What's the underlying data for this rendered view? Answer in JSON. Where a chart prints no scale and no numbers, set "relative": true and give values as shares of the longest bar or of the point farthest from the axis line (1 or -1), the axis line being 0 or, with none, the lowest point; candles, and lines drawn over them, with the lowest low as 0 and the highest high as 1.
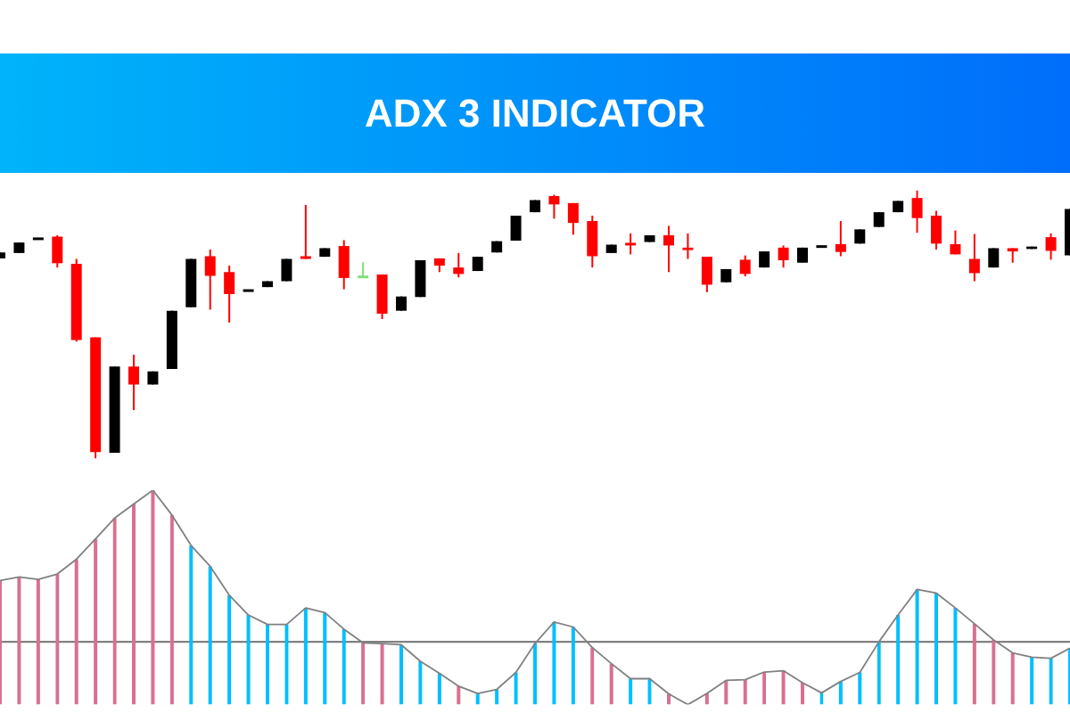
{
  "chart_data": [
    {
      "type": "candlestick",
      "title": "ADX 3 INDICATOR",
      "relative": true,
      "categories": [
        null,
        null,
        null,
        null,
        null,
        null,
        null,
        null,
        null,
        null,
        null,
        null,
        null,
        null,
        null,
        null,
        null,
        null,
        null,
        null,
        null,
        null,
        null,
        null,
        null,
        null,
        null,
        null,
        null,
        null,
        null,
        null,
        null,
        null,
        null,
        null,
        null,
        null,
        null,
        null,
        null,
        null,
        null,
        null,
        null,
        null,
        null,
        null,
        null,
        null,
        null,
        null,
        null,
        null,
        null,
        null,
        null
      ],
      "ohlc": [
        [
          0.746,
          0.768,
          0.746,
          0.768
        ],
        [
          0.766,
          0.805,
          0.766,
          0.805
        ],
        [
          0.819,
          0.819,
          0.819,
          0.819
        ],
        [
          0.827,
          0.832,
          0.712,
          0.728
        ],
        [
          0.726,
          0.744,
          0.436,
          0.442
        ],
        [
          0.452,
          0.452,
          0,
          0.024
        ],
        [
          0.022,
          0.343,
          0.022,
          0.343
        ],
        [
          0.343,
          0.387,
          0.181,
          0.276
        ],
        [
          0.276,
          0.325,
          0.276,
          0.325
        ],
        [
          0.334,
          0.551,
          0.334,
          0.551
        ],
        [
          0.564,
          0.744,
          0.564,
          0.744
        ],
        [
          0.754,
          0.779,
          0.555,
          0.681
        ],
        [
          0.695,
          0.719,
          0.507,
          0.613
        ],
        [
          0.626,
          0.626,
          0.626,
          0.626
        ],
        [
          0.639,
          0.661,
          0.639,
          0.661
        ],
        [
          0.661,
          0.744,
          0.661,
          0.744
        ],
        [
          0.754,
          0.945,
          0.744,
          0.744
        ],
        [
          0.752,
          0.784,
          0.752,
          0.784
        ],
        [
          0.792,
          0.814,
          0.631,
          0.673
        ],
        [
          0.677,
          0.732,
          0.677,
          0.677
        ],
        [
          0.686,
          0.686,
          0.52,
          0.54
        ],
        [
          0.551,
          0.604,
          0.551,
          0.604
        ],
        [
          0.602,
          0.739,
          0.602,
          0.739
        ],
        [
          0.746,
          0.746,
          0.695,
          0.719
        ],
        [
          0.712,
          0.766,
          0.675,
          0.688
        ],
        [
          0.699,
          0.752,
          0.699,
          0.752
        ],
        [
          0.768,
          0.81,
          0.768,
          0.81
        ],
        [
          0.812,
          0.905,
          0.812,
          0.905
        ],
        [
          0.918,
          0.963,
          0.918,
          0.963
        ],
        [
          0.978,
          0.983,
          0.894,
          0.947
        ],
        [
          0.952,
          0.952,
          0.834,
          0.878
        ],
        [
          0.885,
          0.905,
          0.712,
          0.754
        ],
        [
          0.766,
          0.797,
          0.766,
          0.797
        ],
        [
          0.805,
          0.839,
          0.761,
          0.799
        ],
        [
          0.807,
          0.832,
          0.807,
          0.832
        ],
        [
          0.832,
          0.867,
          0.695,
          0.794
        ],
        [
          0.786,
          0.839,
          0.744,
          0.777
        ],
        [
          0.752,
          0.752,
          0.62,
          0.648
        ],
        [
          0.657,
          0.706,
          0.657,
          0.706
        ],
        [
          0.741,
          0.757,
          0.679,
          0.688
        ],
        [
          0.712,
          0.772,
          0.712,
          0.772
        ],
        [
          0.786,
          0.794,
          0.712,
          0.739
        ],
        [
          0.73,
          0.786,
          0.73,
          0.786
        ],
        [
          0.79,
          0.79,
          0.79,
          0.79
        ],
        [
          0.799,
          0.885,
          0.754,
          0.77
        ],
        [
          0.801,
          0.854,
          0.801,
          0.854
        ],
        [
          0.863,
          0.918,
          0.863,
          0.918
        ],
        [
          0.918,
          0.96,
          0.918,
          0.96
        ],
        [
          0.971,
          1,
          0.841,
          0.896
        ],
        [
          0.905,
          0.923,
          0.779,
          0.801
        ],
        [
          0.799,
          0.85,
          0.761,
          0.761
        ],
        [
          0.744,
          0.837,
          0.661,
          0.691
        ],
        [
          0.712,
          0.784,
          0.712,
          0.784
        ],
        [
          0.784,
          0.784,
          0.73,
          0.772
        ],
        [
          0.781,
          0.79,
          0.781,
          0.79
        ],
        [
          0.825,
          0.839,
          0.741,
          0.774
        ],
        [
          0.757,
          0.93,
          0.757,
          0.93
        ]
      ],
      "colors": [
        "#000000",
        "#000000",
        "#000000",
        "#ff0000",
        "#ff0000",
        "#ff0000",
        "#000000",
        "#ff0000",
        "#000000",
        "#000000",
        "#000000",
        "#ff0000",
        "#ff0000",
        "#000000",
        "#000000",
        "#000000",
        "#ff0000",
        "#000000",
        "#ff0000",
        "#7ee07e",
        "#ff0000",
        "#000000",
        "#000000",
        "#ff0000",
        "#ff0000",
        "#000000",
        "#000000",
        "#000000",
        "#000000",
        "#ff0000",
        "#ff0000",
        "#ff0000",
        "#000000",
        "#ff0000",
        "#000000",
        "#ff0000",
        "#ff0000",
        "#ff0000",
        "#000000",
        "#ff0000",
        "#000000",
        "#ff0000",
        "#000000",
        "#000000",
        "#ff0000",
        "#000000",
        "#000000",
        "#000000",
        "#ff0000",
        "#ff0000",
        "#ff0000",
        "#ff0000",
        "#000000",
        "#ff0000",
        "#000000",
        "#ff0000",
        "#000000"
      ]
    },
    {
      "type": "bar",
      "relative": true,
      "categories": [
        null,
        null,
        null,
        null,
        null,
        null,
        null,
        null,
        null,
        null,
        null,
        null,
        null,
        null,
        null,
        null,
        null,
        null,
        null,
        null,
        null,
        null,
        null,
        null,
        null,
        null,
        null,
        null,
        null,
        null,
        null,
        null,
        null,
        null,
        null,
        null,
        null,
        null,
        null,
        null,
        null,
        null,
        null,
        null,
        null,
        null,
        null,
        null,
        null,
        null,
        null,
        null,
        null,
        null,
        null,
        null,
        null
      ],
      "series": [
        {
          "type": "bar",
          "values": [
            0.579,
            0.595,
            0.584,
            0.609,
            0.678,
            0.773,
            0.87,
            0.936,
            1,
            0.884,
            0.742,
            0.645,
            0.51,
            0.418,
            0.374,
            0.374,
            0.451,
            0.429,
            0.352,
            0.288,
            0.285,
            0.279,
            0.202,
            0.146,
            0.086,
            0.052,
            0.071,
            0.15,
            0.285,
            0.385,
            0.362,
            0.266,
            0.191,
            0.121,
            0.121,
            0.05,
            0,
            0.052,
            0.113,
            0.116,
            0.152,
            0.158,
            0.102,
            0.055,
            0.108,
            0.15,
            0.293,
            0.418,
            0.537,
            0.52,
            0.451,
            0.377,
            0.302,
            0.241,
            0.221,
            0.216,
            0.263
          ],
          "colors": [
            "#d9708f",
            "#d9708f",
            "#d9708f",
            "#d9708f",
            "#d9708f",
            "#d9708f",
            "#d9708f",
            "#d9708f",
            "#d9708f",
            "#d9708f",
            "#00bfff",
            "#00bfff",
            "#00bfff",
            "#00bfff",
            "#00bfff",
            "#00bfff",
            "#00bfff",
            "#00bfff",
            "#00bfff",
            "#d9708f",
            "#d9708f",
            "#00bfff",
            "#00bfff",
            "#00bfff",
            "#d9708f",
            "#00bfff",
            "#00bfff",
            "#00bfff",
            "#00bfff",
            "#00bfff",
            "#00bfff",
            "#d9708f",
            "#d9708f",
            "#00bfff",
            "#00bfff",
            "#d9708f",
            "#d9708f",
            "#d9708f",
            "#d9708f",
            "#d9708f",
            "#d9708f",
            "#d9708f",
            "#d9708f",
            "#00bfff",
            "#00bfff",
            "#00bfff",
            "#00bfff",
            "#00bfff",
            "#00bfff",
            "#00bfff",
            "#00bfff",
            "#d9708f",
            "#d9708f",
            "#d9708f",
            "#00bfff",
            "#00bfff",
            "#00bfff"
          ]
        },
        {
          "type": "line",
          "color": "#808080",
          "values": [
            0.579,
            0.595,
            0.584,
            0.609,
            0.678,
            0.773,
            0.87,
            0.936,
            1,
            0.884,
            0.742,
            0.645,
            0.51,
            0.418,
            0.374,
            0.374,
            0.451,
            0.429,
            0.352,
            0.288,
            0.285,
            0.279,
            0.202,
            0.146,
            0.086,
            0.052,
            0.071,
            0.15,
            0.285,
            0.385,
            0.362,
            0.266,
            0.191,
            0.121,
            0.121,
            0.05,
            0,
            0.052,
            0.113,
            0.116,
            0.152,
            0.158,
            0.102,
            0.055,
            0.108,
            0.15,
            0.293,
            0.418,
            0.537,
            0.52,
            0.451,
            0.377,
            0.302,
            0.241,
            0.221,
            0.216,
            0.263
          ]
        }
      ],
      "ref_lines": [
        {
          "axis": "y",
          "value": 0.293,
          "color": "#808080"
        }
      ]
    }
  ]
}
